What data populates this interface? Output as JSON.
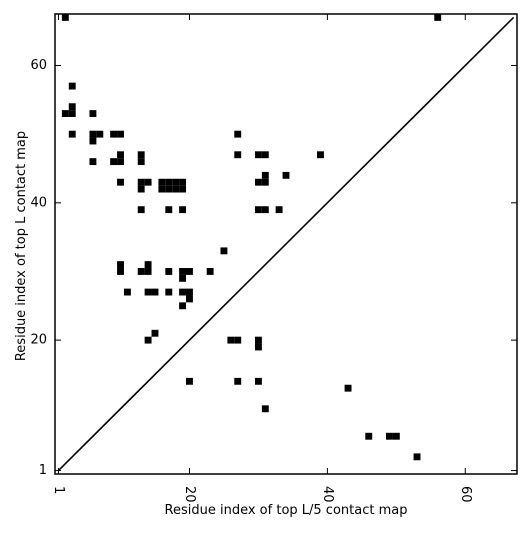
{
  "chart_data": {
    "type": "scatter",
    "marker": "square",
    "xlabel": "Residue index of top L/5 contact map",
    "ylabel": "Residue index of top L contact map",
    "xlim": [
      0.5,
      67.5
    ],
    "ylim": [
      0.5,
      67.5
    ],
    "xticks": [
      1,
      20,
      40,
      60
    ],
    "xtick_labels": [
      "1",
      "20",
      "40",
      "60"
    ],
    "yticks": [
      1,
      20,
      40,
      60
    ],
    "ytick_labels": [
      "1",
      "20",
      "40",
      "60"
    ],
    "x_tick_rotation": -90,
    "grid": false,
    "diagonal_line": [
      [
        1,
        1
      ],
      [
        67,
        67
      ]
    ],
    "colors": {
      "marker": "#000000",
      "line": "#000000",
      "axes": "#000000",
      "background": "#ffffff"
    },
    "series": [
      {
        "points": [
          [
            2,
            67
          ],
          [
            56,
            67
          ],
          [
            3,
            57
          ],
          [
            3,
            54
          ],
          [
            2,
            53
          ],
          [
            3,
            53
          ],
          [
            6,
            53
          ],
          [
            3,
            50
          ],
          [
            6,
            50
          ],
          [
            7,
            50
          ],
          [
            9,
            50
          ],
          [
            10,
            50
          ],
          [
            27,
            50
          ],
          [
            6,
            49
          ],
          [
            10,
            47
          ],
          [
            13,
            47
          ],
          [
            27,
            47
          ],
          [
            30,
            47
          ],
          [
            31,
            47
          ],
          [
            39,
            47
          ],
          [
            6,
            46
          ],
          [
            9,
            46
          ],
          [
            10,
            46
          ],
          [
            13,
            46
          ],
          [
            31,
            44
          ],
          [
            34,
            44
          ],
          [
            10,
            43
          ],
          [
            13,
            43
          ],
          [
            14,
            43
          ],
          [
            16,
            43
          ],
          [
            17,
            43
          ],
          [
            18,
            43
          ],
          [
            19,
            43
          ],
          [
            30,
            43
          ],
          [
            31,
            43
          ],
          [
            13,
            42
          ],
          [
            16,
            42
          ],
          [
            17,
            42
          ],
          [
            18,
            42
          ],
          [
            19,
            42
          ],
          [
            13,
            39
          ],
          [
            17,
            39
          ],
          [
            19,
            39
          ],
          [
            30,
            39
          ],
          [
            31,
            39
          ],
          [
            33,
            39
          ],
          [
            25,
            33
          ],
          [
            10,
            31
          ],
          [
            14,
            31
          ],
          [
            10,
            30
          ],
          [
            13,
            30
          ],
          [
            14,
            30
          ],
          [
            17,
            30
          ],
          [
            19,
            30
          ],
          [
            20,
            30
          ],
          [
            23,
            30
          ],
          [
            19,
            29
          ],
          [
            11,
            27
          ],
          [
            14,
            27
          ],
          [
            15,
            27
          ],
          [
            17,
            27
          ],
          [
            19,
            27
          ],
          [
            20,
            27
          ],
          [
            20,
            26
          ],
          [
            19,
            25
          ],
          [
            15,
            21
          ],
          [
            14,
            20
          ],
          [
            26,
            20
          ],
          [
            27,
            20
          ],
          [
            30,
            20
          ],
          [
            30,
            19
          ],
          [
            20,
            14
          ],
          [
            27,
            14
          ],
          [
            30,
            14
          ],
          [
            43,
            13
          ],
          [
            31,
            10
          ],
          [
            46,
            6
          ],
          [
            49,
            6
          ],
          [
            50,
            6
          ],
          [
            53,
            3
          ]
        ]
      }
    ]
  }
}
